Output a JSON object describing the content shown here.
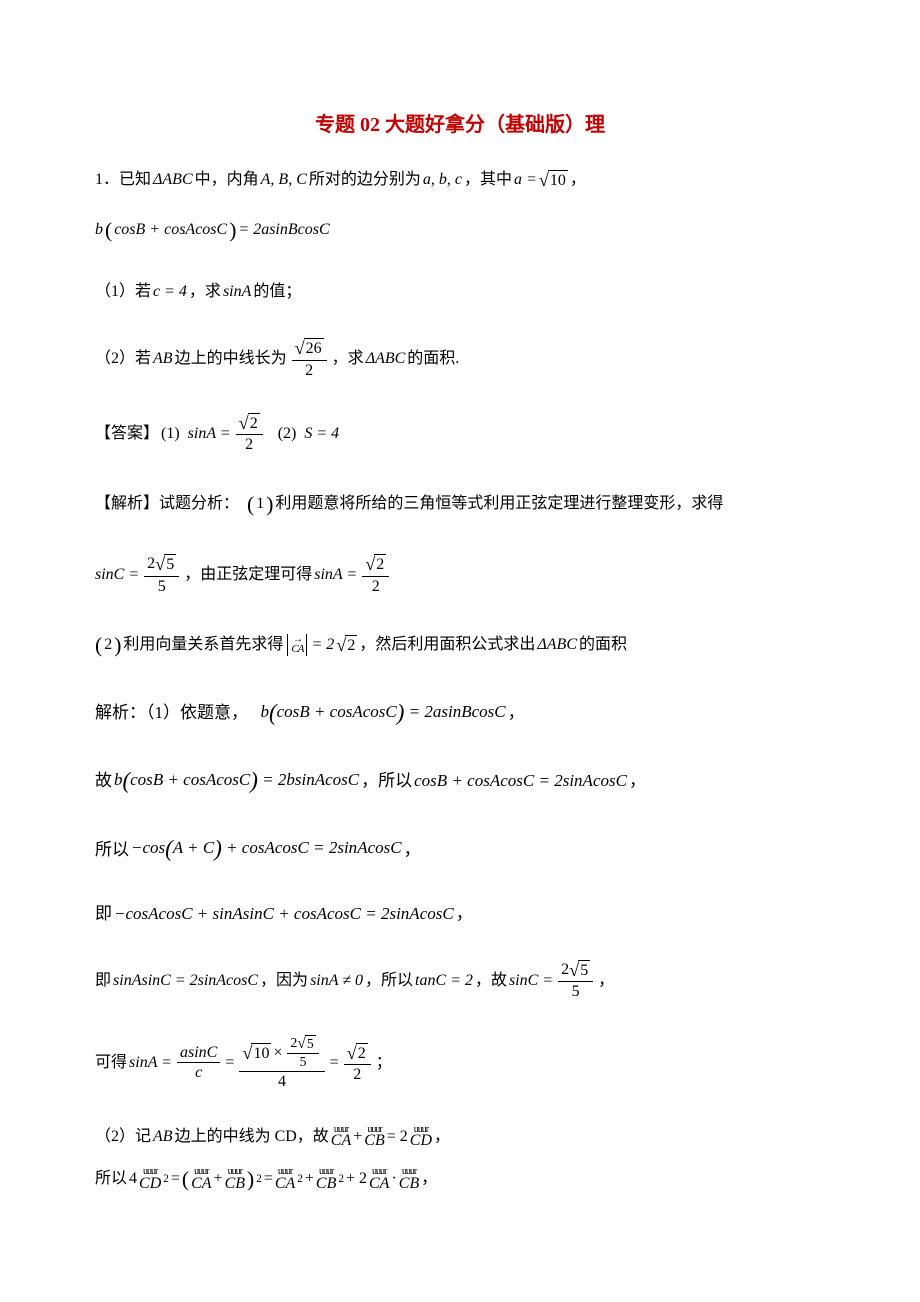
{
  "colors": {
    "title": "#c00000",
    "text": "#000000",
    "background": "#ffffff"
  },
  "fonts": {
    "body_family": "SimSun",
    "math_family": "Times New Roman",
    "title_size_pt": 20,
    "body_size_pt": 16,
    "solution_size_pt": 17
  },
  "title": "专题 02 大题好拿分（基础版）理",
  "p": {
    "q_intro_a": "1．已知",
    "q_delta_abc": "ΔABC",
    "q_intro_b": "中，内角",
    "q_ABC": "A, B, C",
    "q_intro_c": "所对的边分别为",
    "q_abc": "a, b, c",
    "q_intro_d": "，其中",
    "q_a_eq": "a =",
    "q_sqrt10": "10",
    "q_comma": "，",
    "q_eq_lhs_b": "b",
    "q_eq_lhs_inside": "cosB + cosAcosC",
    "q_eq_rhs": "= 2asinBcosC",
    "part1_a": "（1）若",
    "part1_c4": "c = 4",
    "part1_b": "，求",
    "part1_sinA": "sinA",
    "part1_c": "的值；",
    "part2_a": "（2）若",
    "part2_AB": "AB",
    "part2_b": "边上的中线长为",
    "part2_num": "26",
    "part2_den": "2",
    "part2_c": "，求",
    "part2_d": "的面积.",
    "ans_label": "【答案】",
    "ans1_a": "(1)",
    "ans_sinA": "sinA =",
    "ans_sqrt2": "2",
    "ans_den2": "2",
    "ans2_a": "(2)",
    "ans_S": "S = 4",
    "analysis_label": "【解析】试题分析：",
    "analysis1_a": "(1)",
    "analysis1_b": "利用题意将所给的三角恒等式利用正弦定理进行整理变形，求得",
    "sinC_eq": "sinC =",
    "sinC_num": "2",
    "sinC_sqrt": "5",
    "sinC_den": "5",
    "analysis1_c": "，由正弦定理可得",
    "analysis2_a": "(2)",
    "analysis2_b": "利用向量关系首先求得",
    "analysis2_CA": "CA",
    "analysis2_val": "= 2",
    "analysis2_sqrt": "2",
    "analysis2_c": "，然后利用面积公式求出",
    "analysis2_d": "的面积",
    "sol_l1_a": "解析：（1）依题意，",
    "sol_l1_eq": "b(cosB + cosAcosC) = 2asinBcosC",
    "sol_l2_a": "故",
    "sol_l2_eq1": "b(cosB + cosAcosC) = 2bsinAcosC",
    "sol_l2_b": "，所以",
    "sol_l2_eq2": "cosB + cosAcosC = 2sinAcosC",
    "sol_l3_a": "所以",
    "sol_l3_eq": "−cos(A + C) + cosAcosC = 2sinAcosC",
    "sol_l4_a": "即",
    "sol_l4_eq": "−cosAcosC + sinAsinC + cosAcosC = 2sinAcosC",
    "sol_l5_a": "即",
    "sol_l5_eq1": "sinAsinC = 2sinAcosC",
    "sol_l5_b": "，因为",
    "sol_l5_eq2": "sinA ≠ 0",
    "sol_l5_c": "，所以",
    "sol_l5_eq3": "tanC = 2",
    "sol_l5_d": "，故",
    "sol_l6_a": "可得",
    "sol_l6_lhs": "sinA =",
    "sol_l6_f1_num": "asinC",
    "sol_l6_f1_den": "c",
    "sol_l6_eq": "=",
    "sol_l6_top_sqrt": "10",
    "sol_l6_top_x": "×",
    "sol_l6_top2_n": "2",
    "sol_l6_top2_s": "5",
    "sol_l6_top2_d": "5",
    "sol_l6_mid_den": "4",
    "sol_l6_semicolon": "；",
    "sol_l7_a": "（2）记",
    "sol_l7_b": "边上的中线为 CD，故",
    "sol_l7_CA": "CA",
    "sol_l7_plus": "+",
    "sol_l7_CB": "CB",
    "sol_l7_eq": "= 2",
    "sol_l7_CD": "CD",
    "sol_l8_a": "所以",
    "sol_l8_4": "4",
    "sol_l8_sq": "2",
    "sol_l8_eqp": "=",
    "sol_l8_p2": "+ 2",
    "sol_l8_dot": "·"
  }
}
